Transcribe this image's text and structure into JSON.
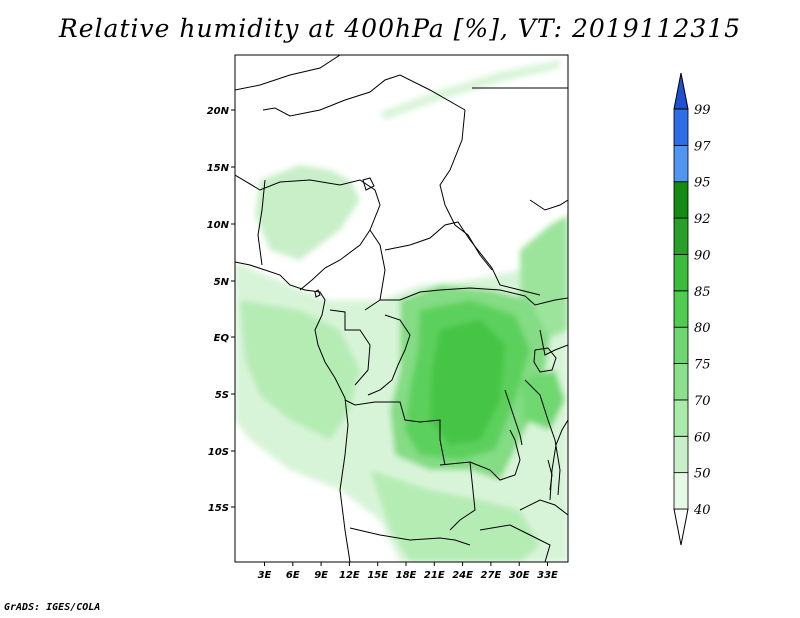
{
  "title": "Relative humidity at 400hPa [%], VT: 2019112315",
  "credit": "GrADS: IGES/COLA",
  "map": {
    "lat_labels": [
      "20N",
      "15N",
      "10N",
      "5N",
      "EQ",
      "5S",
      "10S",
      "15S"
    ],
    "lon_labels": [
      "3E",
      "6E",
      "9E",
      "12E",
      "15E",
      "18E",
      "21E",
      "24E",
      "27E",
      "30E",
      "33E"
    ]
  },
  "colorbar": {
    "levels": [
      "40",
      "50",
      "60",
      "70",
      "75",
      "80",
      "85",
      "90",
      "92",
      "95",
      "97",
      "99"
    ],
    "colors": [
      "#ffffff",
      "#e6f8e6",
      "#c8efc8",
      "#aaeaaa",
      "#8ce08c",
      "#6ed66e",
      "#50cc50",
      "#3cbc3c",
      "#28a028",
      "#148c14",
      "#5096f0",
      "#2d6ee6",
      "#1e50d2"
    ]
  }
}
